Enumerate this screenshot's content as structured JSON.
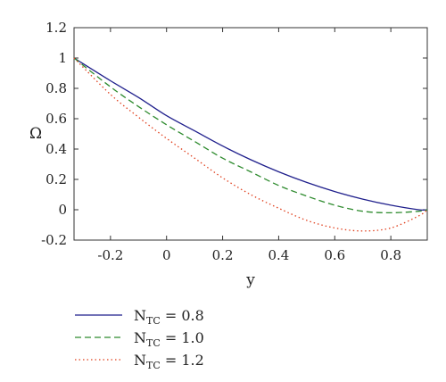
{
  "chart_data": {
    "type": "line",
    "title": "",
    "xlabel": "y",
    "ylabel": "Ω",
    "xlim": [
      -0.33,
      0.93
    ],
    "ylim": [
      -0.2,
      1.2
    ],
    "xticks": [
      "-0.2",
      "0",
      "0.2",
      "0.4",
      "0.6",
      "0.8"
    ],
    "yticks": [
      "-0.2",
      "0",
      "0.2",
      "0.4",
      "0.6",
      "0.8",
      "1",
      "1.2"
    ],
    "grid": false,
    "legend_position": "bottom-left",
    "series": [
      {
        "name": "N_TC = 0.8",
        "legend": {
          "prefix": "N",
          "sub": "TC",
          "suffix": " = 0.8"
        },
        "color": "#1f1f8c",
        "dash": "solid",
        "x": [
          -0.33,
          -0.2,
          -0.1,
          0,
          0.1,
          0.2,
          0.3,
          0.4,
          0.5,
          0.6,
          0.7,
          0.8,
          0.9,
          0.93
        ],
        "y": [
          1.0,
          0.85,
          0.74,
          0.62,
          0.52,
          0.42,
          0.33,
          0.25,
          0.18,
          0.12,
          0.07,
          0.03,
          0.0,
          0.0
        ]
      },
      {
        "name": "N_TC = 1.0",
        "legend": {
          "prefix": "N",
          "sub": "TC",
          "suffix": " = 1.0"
        },
        "color": "#2e8b2e",
        "dash": "dashed",
        "x": [
          -0.33,
          -0.2,
          -0.1,
          0,
          0.1,
          0.2,
          0.3,
          0.4,
          0.5,
          0.6,
          0.7,
          0.8,
          0.9,
          0.93
        ],
        "y": [
          1.0,
          0.81,
          0.68,
          0.56,
          0.45,
          0.34,
          0.25,
          0.16,
          0.09,
          0.03,
          -0.01,
          -0.02,
          -0.01,
          0.0
        ]
      },
      {
        "name": "N_TC = 1.2",
        "legend": {
          "prefix": "N",
          "sub": "TC",
          "suffix": " = 1.2"
        },
        "color": "#e0401e",
        "dash": "dotted",
        "x": [
          -0.33,
          -0.2,
          -0.1,
          0,
          0.1,
          0.2,
          0.3,
          0.4,
          0.5,
          0.6,
          0.7,
          0.8,
          0.9,
          0.93
        ],
        "y": [
          1.0,
          0.76,
          0.61,
          0.47,
          0.34,
          0.21,
          0.1,
          0.01,
          -0.07,
          -0.12,
          -0.14,
          -0.12,
          -0.04,
          0.0
        ]
      }
    ]
  }
}
